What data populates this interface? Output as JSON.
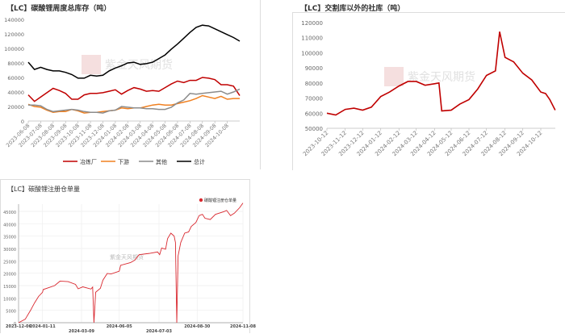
{
  "watermark": "紫金天风期货",
  "chart_data": [
    {
      "type": "line",
      "title": "【LC】碳酸锂周度总库存（吨）",
      "ylim": [
        0,
        140000
      ],
      "yticks": [
        0,
        20000,
        40000,
        60000,
        80000,
        100000,
        120000,
        140000
      ],
      "xtick_labels": [
        "2023-06-08",
        "2023-07-08",
        "2023-08-08",
        "2023-09-08",
        "2023-10-08",
        "2023-11-08",
        "2023-12-08",
        "2024-01-08",
        "2024-02-08",
        "2024-03-08",
        "2024-04-08",
        "2024-05-08",
        "2024-06-08",
        "2024-07-08",
        "2024-08-08",
        "2024-09-08",
        "2024-10-08"
      ],
      "grid": false,
      "legend": "bottom",
      "series": [
        {
          "name": "冶炼厂",
          "color": "#c00000",
          "values": [
            36000,
            27000,
            33000,
            39000,
            45000,
            42000,
            38000,
            30000,
            30000,
            36000,
            38000,
            38000,
            39000,
            41000,
            43000,
            37000,
            42000,
            46000,
            44000,
            41000,
            42000,
            41000,
            46000,
            51000,
            55000,
            53000,
            56000,
            56000,
            60000,
            59000,
            57000,
            50000,
            50000,
            48000,
            35000
          ]
        },
        {
          "name": "下游",
          "color": "#f08020",
          "values": [
            23000,
            20000,
            19000,
            15000,
            12000,
            13000,
            13000,
            16000,
            14000,
            11000,
            12000,
            12000,
            13000,
            14000,
            15000,
            18000,
            17000,
            18000,
            18000,
            20000,
            22000,
            23000,
            22000,
            22000,
            24000,
            26000,
            28000,
            31000,
            35000,
            33000,
            31000,
            34000,
            30000,
            31000,
            31000
          ]
        },
        {
          "name": "其他",
          "color": "#8c8c8c",
          "values": [
            22000,
            22000,
            21000,
            16000,
            13000,
            14000,
            15000,
            16000,
            15000,
            13000,
            12000,
            12000,
            11000,
            14000,
            15000,
            20000,
            19000,
            18000,
            18000,
            17000,
            17000,
            16000,
            16000,
            19000,
            25000,
            29000,
            38000,
            37000,
            38000,
            39000,
            40000,
            41000,
            37000,
            40000,
            44000
          ]
        },
        {
          "name": "总计",
          "color": "#000000",
          "values": [
            81000,
            71000,
            74000,
            71000,
            69000,
            69000,
            67000,
            64000,
            59000,
            59000,
            63000,
            62000,
            63000,
            69000,
            73000,
            76000,
            80000,
            81000,
            78000,
            79000,
            81000,
            86000,
            91000,
            99000,
            106000,
            114000,
            122000,
            129000,
            132000,
            131000,
            127000,
            123000,
            119000,
            115000,
            110000
          ]
        }
      ]
    },
    {
      "type": "line",
      "title": "【LC】交割库以外的社库（吨）",
      "ylim": [
        50000,
        120000
      ],
      "yticks": [
        50000,
        60000,
        70000,
        80000,
        90000,
        100000,
        110000,
        120000
      ],
      "xtick_labels": [
        "2023-10-12",
        "2023-11-12",
        "2023-12-12",
        "2024-01-12",
        "2024-02-12",
        "2024-03-12",
        "2024-04-12",
        "2024-05-12",
        "2024-06-12",
        "2024-07-12",
        "2024-08-12",
        "2024-09-12",
        "2024-10-12"
      ],
      "grid": false,
      "series": [
        {
          "color": "#c00000",
          "points": [
            [
              "2023-10-12",
              60000
            ],
            [
              "2023-10-27",
              58800
            ],
            [
              "2023-11-12",
              62500
            ],
            [
              "2023-11-27",
              63300
            ],
            [
              "2023-12-12",
              62000
            ],
            [
              "2023-12-27",
              64000
            ],
            [
              "2024-01-12",
              71000
            ],
            [
              "2024-01-27",
              74000
            ],
            [
              "2024-02-12",
              78000
            ],
            [
              "2024-02-27",
              81000
            ],
            [
              "2024-03-12",
              81000
            ],
            [
              "2024-03-27",
              78500
            ],
            [
              "2024-04-12",
              79500
            ],
            [
              "2024-04-20",
              80000
            ],
            [
              "2024-04-25",
              61500
            ],
            [
              "2024-05-12",
              62000
            ],
            [
              "2024-05-27",
              66000
            ],
            [
              "2024-06-12",
              69000
            ],
            [
              "2024-06-27",
              76000
            ],
            [
              "2024-07-12",
              85000
            ],
            [
              "2024-07-27",
              88000
            ],
            [
              "2024-08-03",
              114000
            ],
            [
              "2024-08-12",
              97000
            ],
            [
              "2024-08-27",
              94000
            ],
            [
              "2024-09-12",
              86500
            ],
            [
              "2024-09-27",
              82000
            ],
            [
              "2024-10-12",
              74000
            ],
            [
              "2024-10-20",
              73000
            ],
            [
              "2024-10-27",
              69000
            ],
            [
              "2024-11-05",
              62000
            ]
          ]
        }
      ]
    },
    {
      "type": "line",
      "title": "【LC】碳酸锂注册仓单量",
      "ylim": [
        0,
        45000
      ],
      "yticks": [
        0,
        5000,
        10000,
        15000,
        20000,
        25000,
        30000,
        35000,
        40000,
        45000
      ],
      "xtick_labels": [
        "2023-12-06",
        "2024-01-11",
        "2024-03-09",
        "2024-06-05",
        "2024-07-03",
        "2024-08-30",
        "2024-11-08"
      ],
      "grid": true,
      "legend": "top-right",
      "series": [
        {
          "name": "碳酸锂注册仓单量",
          "color": "#d9282f",
          "points": [
            [
              "2023-12-06",
              0
            ],
            [
              "2023-12-16",
              1400
            ],
            [
              "2023-12-24",
              5000
            ],
            [
              "2023-12-30",
              8000
            ],
            [
              "2024-01-05",
              10600
            ],
            [
              "2024-01-11",
              12300
            ],
            [
              "2024-01-12",
              13400
            ],
            [
              "2024-01-29",
              15000
            ],
            [
              "2024-02-06",
              16800
            ],
            [
              "2024-02-18",
              16600
            ],
            [
              "2024-02-29",
              15500
            ],
            [
              "2024-03-04",
              13700
            ],
            [
              "2024-03-12",
              14500
            ],
            [
              "2024-03-31",
              13600
            ],
            [
              "2024-04-04",
              14400
            ],
            [
              "2024-04-07",
              0
            ],
            [
              "2024-04-11",
              12300
            ],
            [
              "2024-04-22",
              13900
            ],
            [
              "2024-04-28",
              17200
            ],
            [
              "2024-05-08",
              19900
            ],
            [
              "2024-05-17",
              19700
            ],
            [
              "2024-06-05",
              20800
            ],
            [
              "2024-06-06",
              23200
            ],
            [
              "2024-06-13",
              24300
            ],
            [
              "2024-06-16",
              25300
            ],
            [
              "2024-06-19",
              27500
            ],
            [
              "2024-06-26",
              28000
            ],
            [
              "2024-07-02",
              28600
            ],
            [
              "2024-07-04",
              27500
            ],
            [
              "2024-07-07",
              30200
            ],
            [
              "2024-07-13",
              29700
            ],
            [
              "2024-07-16",
              34000
            ],
            [
              "2024-07-21",
              36200
            ],
            [
              "2024-07-26",
              35000
            ],
            [
              "2024-07-28",
              32400
            ],
            [
              "2024-07-30",
              0
            ],
            [
              "2024-08-01",
              27000
            ],
            [
              "2024-08-05",
              32400
            ],
            [
              "2024-08-11",
              36200
            ],
            [
              "2024-08-17",
              36700
            ],
            [
              "2024-08-21",
              38900
            ],
            [
              "2024-08-28",
              40500
            ],
            [
              "2024-09-02",
              43300
            ],
            [
              "2024-09-07",
              43800
            ],
            [
              "2024-09-11",
              42200
            ],
            [
              "2024-09-19",
              41700
            ],
            [
              "2024-09-27",
              43800
            ],
            [
              "2024-10-10",
              44900
            ],
            [
              "2024-10-14",
              45400
            ],
            [
              "2024-10-20",
              43300
            ],
            [
              "2024-10-26",
              44300
            ],
            [
              "2024-11-03",
              46500
            ],
            [
              "2024-11-08",
              48400
            ]
          ]
        }
      ]
    }
  ]
}
